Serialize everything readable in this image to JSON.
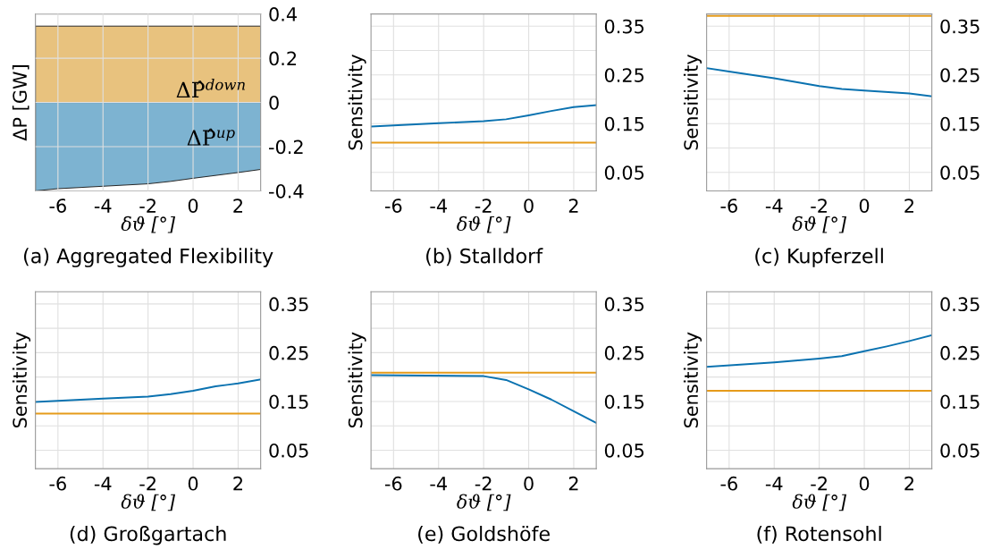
{
  "chart_data": [
    {
      "type": "area",
      "title": "(a) Aggregated Flexibility",
      "xlabel": "δϑ [°]",
      "ylabel": "ΔP [GW]",
      "xlim": [
        -7,
        3
      ],
      "ylim": [
        -0.4,
        0.4
      ],
      "xticks": [
        -6,
        -4,
        -2,
        0,
        2
      ],
      "yticks": [
        -0.4,
        -0.2,
        0,
        0.2,
        0.4
      ],
      "grid": true,
      "annotations": [
        "ΔP̂$^{down}$",
        "ΔP̂$^{up}$"
      ],
      "series": [
        {
          "color": "#e8c27e",
          "x": [
            -7,
            3
          ],
          "values": [
            0.345,
            0.345
          ]
        },
        {
          "color": "#7db3d1",
          "x": [
            -7,
            -6,
            -2,
            -1,
            0,
            2,
            3
          ],
          "values": [
            -0.4,
            -0.39,
            -0.368,
            -0.357,
            -0.343,
            -0.317,
            -0.303
          ]
        }
      ]
    },
    {
      "type": "line",
      "title": "(b) Stalldorf",
      "xlabel": "δϑ [°]",
      "ylabel": "Sensitivity",
      "xlim": [
        -7,
        3
      ],
      "ylim": [
        0.012,
        0.375
      ],
      "xticks": [
        -6,
        -4,
        -2,
        0,
        2
      ],
      "yticks": [
        0.05,
        {
          "value": 0.1,
          "label": null
        },
        0.15,
        {
          "value": 0.2,
          "label": null
        },
        0.25,
        {
          "value": 0.3,
          "label": null
        },
        0.35
      ],
      "grid": true,
      "series": [
        {
          "color": "#0a72b0",
          "x": [
            -7,
            -4,
            -2,
            -1,
            0,
            1,
            2,
            3
          ],
          "values": [
            0.144,
            0.151,
            0.155,
            0.159,
            0.167,
            0.176,
            0.184,
            0.188
          ]
        },
        {
          "color": "#e69b1a",
          "x": [
            -7,
            3
          ],
          "values": [
            0.111,
            0.111
          ]
        }
      ]
    },
    {
      "type": "line",
      "title": "(c) Kupferzell",
      "xlabel": "δϑ [°]",
      "ylabel": "Sensitivity",
      "xlim": [
        -7,
        3
      ],
      "ylim": [
        0.012,
        0.375
      ],
      "xticks": [
        -6,
        -4,
        -2,
        0,
        2
      ],
      "yticks": [
        0.05,
        {
          "value": 0.1,
          "label": null
        },
        0.15,
        {
          "value": 0.2,
          "label": null
        },
        0.25,
        {
          "value": 0.3,
          "label": null
        },
        0.35
      ],
      "grid": true,
      "series": [
        {
          "color": "#0a72b0",
          "x": [
            -7,
            -6,
            -4,
            -2,
            -1,
            0,
            2,
            3
          ],
          "values": [
            0.264,
            0.257,
            0.243,
            0.227,
            0.221,
            0.218,
            0.212,
            0.206
          ]
        },
        {
          "color": "#e69b1a",
          "x": [
            -7,
            3
          ],
          "values": [
            0.371,
            0.371
          ]
        }
      ]
    },
    {
      "type": "line",
      "title": "(d) Großgartach",
      "xlabel": "δϑ [°]",
      "ylabel": "Sensitivity",
      "xlim": [
        -7,
        3
      ],
      "ylim": [
        0.012,
        0.375
      ],
      "xticks": [
        -6,
        -4,
        -2,
        0,
        2
      ],
      "yticks": [
        0.05,
        {
          "value": 0.1,
          "label": null
        },
        0.15,
        {
          "value": 0.2,
          "label": null
        },
        0.25,
        {
          "value": 0.3,
          "label": null
        },
        0.35
      ],
      "grid": true,
      "series": [
        {
          "color": "#0a72b0",
          "x": [
            -7,
            -4,
            -2,
            -1,
            0,
            1,
            2,
            3
          ],
          "values": [
            0.149,
            0.156,
            0.16,
            0.165,
            0.172,
            0.181,
            0.187,
            0.195
          ]
        },
        {
          "color": "#e69b1a",
          "x": [
            -7,
            3
          ],
          "values": [
            0.125,
            0.125
          ]
        }
      ]
    },
    {
      "type": "line",
      "title": "(e) Goldshöfe",
      "xlabel": "δϑ [°]",
      "ylabel": "Sensitivity",
      "xlim": [
        -7,
        3
      ],
      "ylim": [
        0.012,
        0.375
      ],
      "xticks": [
        -6,
        -4,
        -2,
        0,
        2
      ],
      "yticks": [
        0.05,
        {
          "value": 0.1,
          "label": null
        },
        0.15,
        {
          "value": 0.2,
          "label": null
        },
        0.25,
        {
          "value": 0.3,
          "label": null
        },
        0.35
      ],
      "grid": true,
      "series": [
        {
          "color": "#0a72b0",
          "x": [
            -7,
            -2,
            -1,
            0,
            1,
            2,
            3
          ],
          "values": [
            0.204,
            0.202,
            0.194,
            0.175,
            0.154,
            0.13,
            0.106
          ]
        },
        {
          "color": "#e69b1a",
          "x": [
            -7,
            3
          ],
          "values": [
            0.209,
            0.209
          ]
        }
      ]
    },
    {
      "type": "line",
      "title": "(f) Rotensohl",
      "xlabel": "δϑ [°]",
      "ylabel": "Sensitivity",
      "xlim": [
        -7,
        3
      ],
      "ylim": [
        0.012,
        0.375
      ],
      "xticks": [
        -6,
        -4,
        -2,
        0,
        2
      ],
      "yticks": [
        0.05,
        {
          "value": 0.1,
          "label": null
        },
        0.15,
        {
          "value": 0.2,
          "label": null
        },
        0.25,
        {
          "value": 0.3,
          "label": null
        },
        0.35
      ],
      "grid": true,
      "series": [
        {
          "color": "#0a72b0",
          "x": [
            -7,
            -4,
            -2,
            -1,
            0,
            1,
            2,
            3
          ],
          "values": [
            0.221,
            0.23,
            0.238,
            0.243,
            0.253,
            0.263,
            0.274,
            0.286
          ]
        },
        {
          "color": "#e69b1a",
          "x": [
            -7,
            3
          ],
          "values": [
            0.172,
            0.172
          ]
        }
      ]
    }
  ]
}
